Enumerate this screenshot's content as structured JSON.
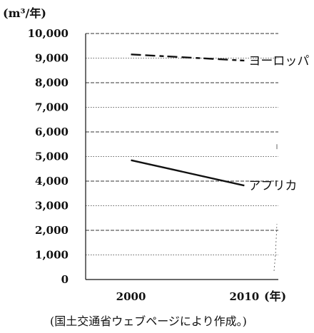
{
  "chart_data": {
    "type": "line",
    "y_unit_label": "(m³/年)",
    "x_unit_label": "(年)",
    "source_note": "(国土交通省ウェブページにより作成。)",
    "x": [
      2000,
      2010
    ],
    "xlim": [
      1996,
      2013
    ],
    "ylim": [
      0,
      10000
    ],
    "y_ticks": [
      {
        "value": 0,
        "label": "0"
      },
      {
        "value": 1000,
        "label": "1,000"
      },
      {
        "value": 2000,
        "label": "2,000"
      },
      {
        "value": 3000,
        "label": "3,000"
      },
      {
        "value": 4000,
        "label": "4,000"
      },
      {
        "value": 5000,
        "label": "5,000"
      },
      {
        "value": 6000,
        "label": "6,000"
      },
      {
        "value": 7000,
        "label": "7,000"
      },
      {
        "value": 8000,
        "label": "8,000"
      },
      {
        "value": 9000,
        "label": "9,000"
      },
      {
        "value": 10000,
        "label": "10,000"
      }
    ],
    "x_ticks": [
      {
        "value": 2000,
        "label": "2000"
      },
      {
        "value": 2010,
        "label": "2010"
      }
    ],
    "grid": true,
    "series": [
      {
        "name": "ヨーロッパ",
        "values": [
          9150,
          8900
        ],
        "line": "dashed"
      },
      {
        "name": "アフリカ",
        "values": [
          4850,
          3820
        ],
        "line": "solid"
      }
    ]
  }
}
